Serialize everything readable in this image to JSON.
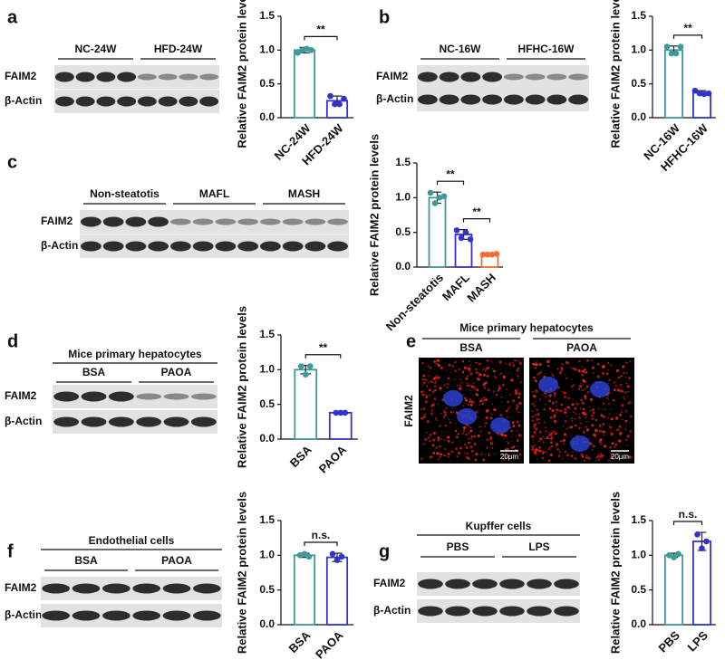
{
  "panel_labels": [
    "a",
    "b",
    "c",
    "d",
    "e",
    "f",
    "g"
  ],
  "chart_data": [
    {
      "type": "bar",
      "ylabel": "Relative FAIM2 protein levels",
      "categories": [
        "NC-24W",
        "HFD-24W"
      ],
      "values": [
        1.0,
        0.25
      ],
      "errors": [
        0.04,
        0.07
      ],
      "points": [
        [
          0.96,
          1.0,
          1.02,
          1.0
        ],
        [
          0.32,
          0.2,
          0.2,
          0.28
        ]
      ],
      "colors": [
        "#3c9a9b",
        "#3333cc"
      ],
      "ylim": [
        0,
        1.5
      ],
      "yticks": [
        {
          "value": 0,
          "label": "0.0"
        },
        0.5,
        {
          "value": 1,
          "label": "1.0"
        },
        1.5
      ],
      "annotations": [
        "**"
      ]
    },
    {
      "type": "bar",
      "ylabel": "Relative FAIM2 protein levels",
      "categories": [
        "NC-16W",
        "HFHC-16W"
      ],
      "values": [
        1.0,
        0.37
      ],
      "errors": [
        0.06,
        0.03
      ],
      "points": [
        [
          1.05,
          0.95,
          0.95,
          1.05
        ],
        [
          0.4,
          0.36,
          0.35,
          0.36
        ]
      ],
      "colors": [
        "#3c9a9b",
        "#3333cc"
      ],
      "ylim": [
        0,
        1.5
      ],
      "yticks": [
        {
          "value": 0,
          "label": "0.0"
        },
        0.5,
        {
          "value": 1,
          "label": "1.0"
        },
        1.5
      ],
      "annotations": [
        "**"
      ]
    },
    {
      "type": "bar",
      "ylabel": "Relative FAIM2 protein levels",
      "categories": [
        "Non-steatotis",
        "MAFL",
        "MASH"
      ],
      "values": [
        1.0,
        0.47,
        0.18
      ],
      "errors": [
        0.08,
        0.07,
        0.02
      ],
      "points": [
        [
          1.07,
          0.92,
          1.0,
          1.02
        ],
        [
          0.53,
          0.42,
          0.5,
          0.4
        ],
        [
          0.18,
          0.18,
          0.18,
          0.19
        ]
      ],
      "colors": [
        "#3c9a9b",
        "#3333cc",
        "#f07030"
      ],
      "ylim": [
        0,
        1.5
      ],
      "yticks": [
        {
          "value": 0,
          "label": "0.0"
        },
        0.5,
        {
          "value": 1,
          "label": "1.0"
        },
        1.5
      ],
      "annotations": [
        "**",
        "**"
      ]
    },
    {
      "type": "bar",
      "ylabel": "Relative FAIM2 protein levels",
      "categories": [
        "BSA",
        "PAOA"
      ],
      "values": [
        1.0,
        0.38
      ],
      "errors": [
        0.06,
        0.02
      ],
      "points": [
        [
          1.05,
          0.93,
          1.05
        ],
        [
          0.38,
          0.38,
          0.38
        ]
      ],
      "colors": [
        "#3c9a9b",
        "#3333cc"
      ],
      "ylim": [
        0,
        1.5
      ],
      "yticks": [
        {
          "value": 0,
          "label": "0.0"
        },
        0.5,
        {
          "value": 1,
          "label": "1.0"
        },
        1.5
      ],
      "annotations": [
        "**"
      ]
    },
    {
      "type": "bar",
      "ylabel": "Relative FAIM2 protein levels",
      "categories": [
        "BSA",
        "PAOA"
      ],
      "values": [
        1.0,
        0.97
      ],
      "errors": [
        0.03,
        0.06
      ],
      "points": [
        [
          1.0,
          1.02,
          0.98
        ],
        [
          1.02,
          0.93,
          0.98
        ]
      ],
      "colors": [
        "#3c9a9b",
        "#3333cc"
      ],
      "ylim": [
        0,
        1.5
      ],
      "yticks": [
        {
          "value": 0,
          "label": "0.0"
        },
        0.5,
        {
          "value": 1,
          "label": "1.0"
        },
        1.5
      ],
      "annotations": [
        "n.s."
      ]
    },
    {
      "type": "bar",
      "ylabel": "Relative FAIM2 protein levels",
      "categories": [
        "PBS",
        "LPS"
      ],
      "values": [
        1.0,
        1.2
      ],
      "errors": [
        0.03,
        0.13
      ],
      "points": [
        [
          1.0,
          0.97,
          1.02
        ],
        [
          1.3,
          1.1,
          1.2
        ]
      ],
      "colors": [
        "#3c9a9b",
        "#3333cc"
      ],
      "ylim": [
        0,
        1.5
      ],
      "yticks": [
        {
          "value": 0,
          "label": "0.0"
        },
        0.5,
        {
          "value": 1,
          "label": "1.0"
        },
        1.5
      ],
      "annotations": [
        "n.s."
      ]
    }
  ],
  "blots": [
    {
      "groups": [
        "NC-24W",
        "HFD-24W"
      ],
      "rows": [
        "FAIM2",
        "β-Actin"
      ]
    },
    {
      "groups": [
        "NC-16W",
        "HFHC-16W"
      ],
      "rows": [
        "FAIM2",
        "β-Actin"
      ]
    },
    {
      "groups": [
        "Non-steatotis",
        "MAFL",
        "MASH"
      ],
      "rows": [
        "FAIM2",
        "β-Actin"
      ]
    },
    {
      "title": "Mice primary hepatocytes",
      "groups": [
        "BSA",
        "PAOA"
      ],
      "rows": [
        "FAIM2",
        "β-Actin"
      ]
    },
    {
      "title": "Endothelial cells",
      "groups": [
        "BSA",
        "PAOA"
      ],
      "rows": [
        "FAIM2",
        "β-Actin"
      ]
    },
    {
      "title": "Kupffer cells",
      "groups": [
        "PBS",
        "LPS"
      ],
      "rows": [
        "FAIM2",
        "β-Actin"
      ]
    }
  ],
  "micrograph": {
    "title": "Mice primary hepatocytes",
    "groups": [
      "BSA",
      "PAOA"
    ],
    "ylabel": "FAIM2",
    "scale_bars": [
      "20μm",
      "20μm"
    ]
  }
}
